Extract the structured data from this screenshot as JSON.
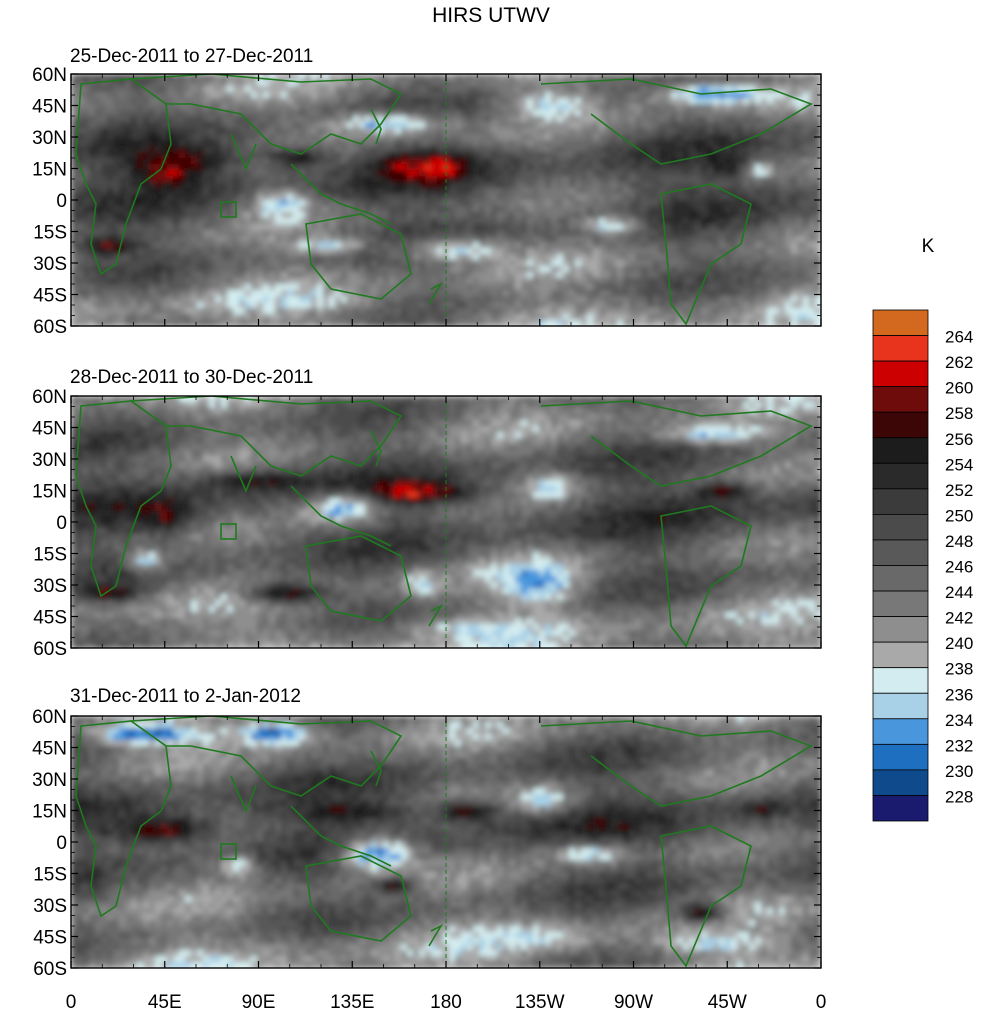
{
  "figure": {
    "title": "HIRS UTWV",
    "colorbar_unit": "K",
    "colorbar_levels": [
      228,
      230,
      232,
      234,
      236,
      238,
      240,
      242,
      244,
      246,
      248,
      250,
      252,
      254,
      256,
      258,
      260,
      262,
      264
    ],
    "colorbar_colors": [
      "#1a1a6e",
      "#0f4a8c",
      "#1e6fc0",
      "#4a96dd",
      "#a8d0e6",
      "#d3ecef",
      "#a9a9a9",
      "#8e8e8e",
      "#787878",
      "#696969",
      "#595959",
      "#4b4b4b",
      "#3b3b3b",
      "#2a2a2a",
      "#1c1c1c",
      "#3c0606",
      "#6e0b0b",
      "#cc0000",
      "#e8341c",
      "#d2691e"
    ],
    "coastline_color": "#1f7a1f"
  },
  "panels": [
    {
      "title": "25-Dec-2011 to 27-Dec-2011"
    },
    {
      "title": "28-Dec-2011 to 30-Dec-2011"
    },
    {
      "title": "31-Dec-2011 to 2-Jan-2012"
    }
  ],
  "axes": {
    "lat_labels": [
      "60N",
      "45N",
      "30N",
      "15N",
      "0",
      "15S",
      "30S",
      "45S",
      "60S"
    ],
    "lon_labels": [
      "0",
      "45E",
      "90E",
      "135E",
      "180",
      "135W",
      "90W",
      "45W",
      "0"
    ]
  }
}
